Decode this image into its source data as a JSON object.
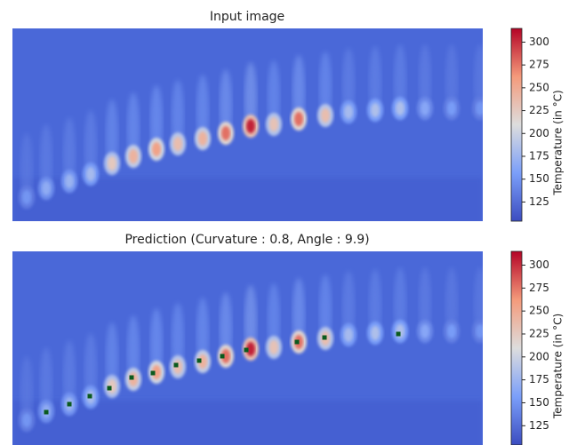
{
  "chart_data": [
    {
      "type": "heatmap",
      "title": "Input image",
      "colorbar_label": "Temperature (in °C)",
      "clim": [
        104,
        315
      ],
      "cticks": [
        125,
        150,
        175,
        200,
        225,
        250,
        275,
        300
      ]
    },
    {
      "type": "heatmap",
      "title": "Prediction (Curvature : 0.8, Angle : 9.9)",
      "colorbar_label": "Temperature (in °C)",
      "clim": [
        104,
        315
      ],
      "cticks": [
        125,
        150,
        175,
        200,
        225,
        250,
        275,
        300
      ]
    }
  ]
}
